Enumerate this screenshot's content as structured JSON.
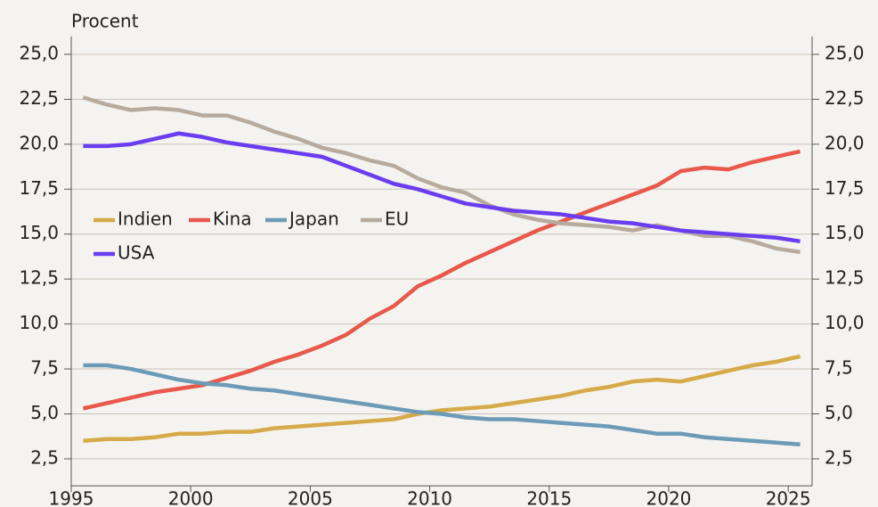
{
  "chart_data": {
    "type": "line",
    "ylabel": "Procent",
    "x": [
      1995.5,
      1996.5,
      1997.5,
      1998.5,
      1999.5,
      2000.5,
      2001.5,
      2002.5,
      2003.5,
      2004.5,
      2005.5,
      2006.5,
      2007.5,
      2008.5,
      2009.5,
      2010.5,
      2011.5,
      2012.5,
      2013.5,
      2014.5,
      2015.5,
      2016.5,
      2017.5,
      2018.5,
      2019.5,
      2020.5,
      2021.5,
      2022.5,
      2023.5,
      2024.5,
      2025.5
    ],
    "series": [
      {
        "name": "Indien",
        "color": "#d5aa48",
        "values": [
          3.5,
          3.6,
          3.6,
          3.7,
          3.9,
          3.9,
          4.0,
          4.0,
          4.2,
          4.3,
          4.4,
          4.5,
          4.6,
          4.7,
          5.0,
          5.2,
          5.3,
          5.4,
          5.6,
          5.8,
          6.0,
          6.3,
          6.5,
          6.8,
          6.9,
          6.8,
          7.1,
          7.4,
          7.7,
          7.9,
          8.2
        ]
      },
      {
        "name": "Kina",
        "color": "#e8584b",
        "values": [
          5.3,
          5.6,
          5.9,
          6.2,
          6.4,
          6.6,
          7.0,
          7.4,
          7.9,
          8.3,
          8.8,
          9.4,
          10.3,
          11.0,
          12.1,
          12.7,
          13.4,
          14.0,
          14.6,
          15.2,
          15.7,
          16.2,
          16.7,
          17.2,
          17.7,
          18.5,
          18.7,
          18.6,
          19.0,
          19.3,
          19.6
        ]
      },
      {
        "name": "Japan",
        "color": "#6b9bb6",
        "values": [
          7.7,
          7.7,
          7.5,
          7.2,
          6.9,
          6.7,
          6.6,
          6.4,
          6.3,
          6.1,
          5.9,
          5.7,
          5.5,
          5.3,
          5.1,
          5.0,
          4.8,
          4.7,
          4.7,
          4.6,
          4.5,
          4.4,
          4.3,
          4.1,
          3.9,
          3.9,
          3.7,
          3.6,
          3.5,
          3.4,
          3.3
        ]
      },
      {
        "name": "EU",
        "color": "#b6ab9c",
        "values": [
          22.6,
          22.2,
          21.9,
          22.0,
          21.9,
          21.6,
          21.6,
          21.2,
          20.7,
          20.3,
          19.8,
          19.5,
          19.1,
          18.8,
          18.1,
          17.6,
          17.3,
          16.6,
          16.1,
          15.8,
          15.6,
          15.5,
          15.4,
          15.2,
          15.5,
          15.2,
          14.9,
          14.9,
          14.6,
          14.2,
          14.0
        ]
      },
      {
        "name": "USA",
        "color": "#6a3ef0",
        "values": [
          19.9,
          19.9,
          20.0,
          20.3,
          20.6,
          20.4,
          20.1,
          19.9,
          19.7,
          19.5,
          19.3,
          18.8,
          18.3,
          17.8,
          17.5,
          17.1,
          16.7,
          16.5,
          16.3,
          16.2,
          16.1,
          15.9,
          15.7,
          15.6,
          15.4,
          15.2,
          15.1,
          15.0,
          14.9,
          14.8,
          14.6
        ]
      }
    ],
    "xlim": [
      1995,
      2026
    ],
    "xticks": [
      1995,
      2000,
      2005,
      2010,
      2015,
      2020,
      2025
    ],
    "ylim": [
      1,
      26
    ],
    "yticks": [
      {
        "value": 2.5,
        "label": "2,5"
      },
      {
        "value": 5,
        "label": "5,0"
      },
      {
        "value": 7.5,
        "label": "7,5"
      },
      {
        "value": 10,
        "label": "10,0"
      },
      {
        "value": 12.5,
        "label": "12,5"
      },
      {
        "value": 15,
        "label": "15,0"
      },
      {
        "value": 17.5,
        "label": "17,5"
      },
      {
        "value": 20,
        "label": "20,0"
      },
      {
        "value": 22.5,
        "label": "22,5"
      },
      {
        "value": 25,
        "label": "25,0"
      }
    ],
    "y2lim": [
      1,
      26
    ],
    "y2ticks": [
      {
        "value": 2.5,
        "label": "2,5"
      },
      {
        "value": 5,
        "label": "5,0"
      },
      {
        "value": 7.5,
        "label": "7,5"
      },
      {
        "value": 10,
        "label": "10,0"
      },
      {
        "value": 12.5,
        "label": "12,5"
      },
      {
        "value": 15,
        "label": "15,0"
      },
      {
        "value": 17.5,
        "label": "17,5"
      },
      {
        "value": 20,
        "label": "20,0"
      },
      {
        "value": 22.5,
        "label": "22,5"
      },
      {
        "value": 25,
        "label": "25,0"
      }
    ],
    "grid": true,
    "legend": "left"
  }
}
